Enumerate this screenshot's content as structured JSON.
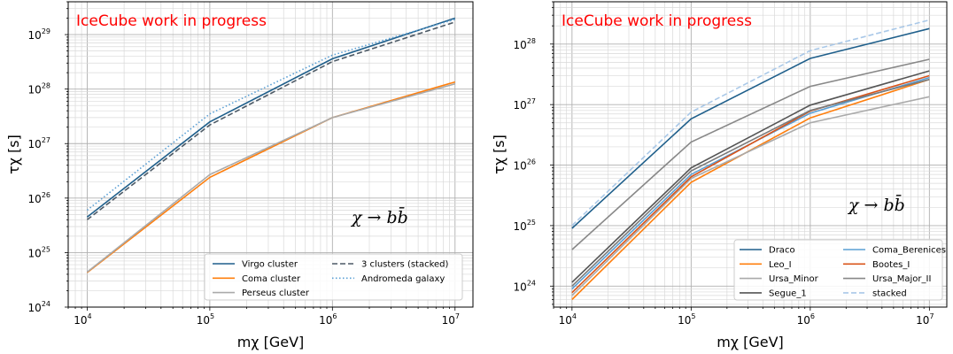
{
  "chart_data": [
    {
      "type": "line",
      "title": "",
      "watermark": "IceCube work in progress",
      "annotation": "χ → bb̄",
      "xlabel": "mχ [GeV]",
      "ylabel": "τχ [s]",
      "xscale": "log",
      "yscale": "log",
      "xlim": [
        7000,
        14000000
      ],
      "ylim": [
        1e+24,
        4e+29
      ],
      "xticks": [
        10000.0,
        100000.0,
        1000000.0,
        10000000.0
      ],
      "yticks": [
        1e+24,
        1e+25,
        1e+26,
        1e+27,
        1e+28,
        1e+29
      ],
      "grid": true,
      "legend": {
        "position": "lower-right",
        "columns": 2
      },
      "x": [
        10000.0,
        100000.0,
        1000000.0,
        10000000.0
      ],
      "series": [
        {
          "name": "Virgo cluster",
          "color": "#1f5f8b",
          "dash": "solid",
          "values": [
            4.5e+25,
            2.5e+27,
            3.6e+28,
            2e+29
          ]
        },
        {
          "name": "Coma cluster",
          "color": "#ff7f0e",
          "dash": "solid",
          "values": [
            4.3e+24,
            2.4e+26,
            3e+27,
            1.35e+28
          ]
        },
        {
          "name": "Perseus cluster",
          "color": "#aaaaaa",
          "dash": "solid",
          "values": [
            4.4e+24,
            2.7e+26,
            3e+27,
            1.25e+28
          ]
        },
        {
          "name": "3 clusters (stacked)",
          "color": "#4d5a66",
          "dash": "dashed",
          "values": [
            4e+25,
            2.2e+27,
            3.2e+28,
            1.7e+29
          ]
        },
        {
          "name": "Andromeda galaxy",
          "color": "#5a9fd4",
          "dash": "dotted",
          "values": [
            6e+25,
            3.5e+27,
            4.2e+28,
            1.9e+29
          ]
        }
      ]
    },
    {
      "type": "line",
      "title": "",
      "watermark": "IceCube work in progress",
      "annotation": "χ → bb̄",
      "xlabel": "mχ [GeV]",
      "ylabel": "τχ [s]",
      "xscale": "log",
      "yscale": "log",
      "xlim": [
        7000,
        14000000
      ],
      "ylim": [
        4.5e+23,
        5e+28
      ],
      "xticks": [
        10000.0,
        100000.0,
        1000000.0,
        10000000.0
      ],
      "yticks": [
        1e+24,
        1e+25,
        1e+26,
        1e+27,
        1e+28
      ],
      "grid": true,
      "legend": {
        "position": "lower-right",
        "columns": 2
      },
      "x": [
        10000.0,
        100000.0,
        1000000.0,
        10000000.0
      ],
      "series": [
        {
          "name": "Draco",
          "color": "#1f5f8b",
          "dash": "solid",
          "values": [
            9e+24,
            5.8e+26,
            5.8e+27,
            1.8e+28
          ]
        },
        {
          "name": "Leo_I",
          "color": "#ff7f0e",
          "dash": "solid",
          "values": [
            6e+23,
            5.2e+25,
            6e+26,
            2.6e+27
          ]
        },
        {
          "name": "Ursa_Minor",
          "color": "#aaaaaa",
          "dash": "solid",
          "values": [
            7e+23,
            6e+25,
            5e+26,
            1.35e+27
          ]
        },
        {
          "name": "Segue_1",
          "color": "#555555",
          "dash": "solid",
          "values": [
            1.15e+24,
            9e+25,
            9.8e+26,
            3.6e+27
          ]
        },
        {
          "name": "Coma_Berenices",
          "color": "#5a9fd4",
          "dash": "solid",
          "values": [
            9e+23,
            7e+25,
            7.2e+26,
            2.8e+27
          ]
        },
        {
          "name": "Bootes_I",
          "color": "#d9541a",
          "dash": "solid",
          "values": [
            7.8e+23,
            6.4e+25,
            7.8e+26,
            3e+27
          ]
        },
        {
          "name": "Ursa_Major_II",
          "color": "#888888",
          "dash": "solid",
          "values": [
            4e+24,
            2.4e+26,
            2e+27,
            5.6e+27
          ]
        },
        {
          "name": "",
          "color": "#7a7a7a",
          "dash": "solid",
          "values": [
            1e+24,
            8e+25,
            8e+26,
            2.6e+27
          ]
        },
        {
          "name": "stacked",
          "color": "#a9c8e8",
          "dash": "dashed",
          "values": [
            1e+25,
            7.5e+26,
            7.8e+27,
            2.5e+28
          ]
        }
      ]
    }
  ]
}
